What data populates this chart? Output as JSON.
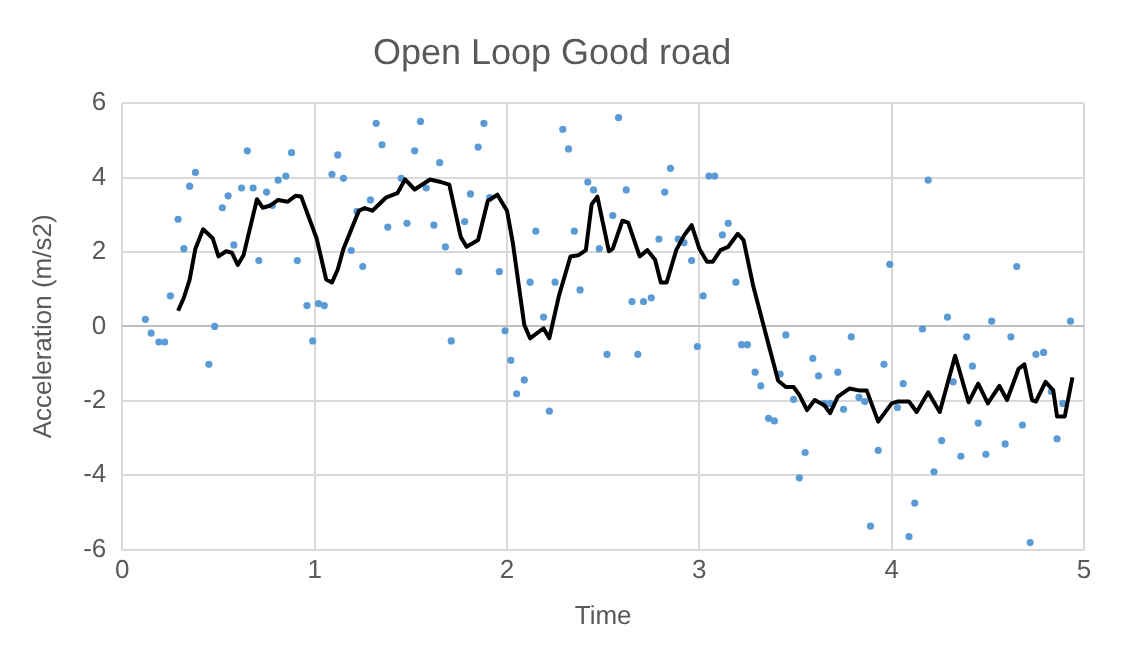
{
  "chart_data": {
    "type": "scatter",
    "title": "Open Loop Good road",
    "xlabel": "Time",
    "ylabel": "Acceleration (m/s2)",
    "xlim": [
      0,
      5
    ],
    "xticks": [
      0,
      1,
      2,
      3,
      4,
      5
    ],
    "ylim": [
      -6,
      6
    ],
    "yticks": [
      -6,
      -4,
      -2,
      0,
      2,
      4,
      6
    ],
    "grid": true,
    "legend": false,
    "marker": "circle",
    "series": [
      {
        "type": "scatter",
        "color": "#5b9bd5",
        "x": [
          0.12,
          0.15,
          0.19,
          0.22,
          0.25,
          0.29,
          0.32,
          0.35,
          0.38,
          0.45,
          0.48,
          0.52,
          0.55,
          0.58,
          0.62,
          0.65,
          0.68,
          0.71,
          0.75,
          0.78,
          0.81,
          0.85,
          0.88,
          0.91,
          0.96,
          0.99,
          1.02,
          1.05,
          1.09,
          1.12,
          1.15,
          1.19,
          1.22,
          1.25,
          1.29,
          1.32,
          1.35,
          1.38,
          1.45,
          1.48,
          1.52,
          1.55,
          1.58,
          1.62,
          1.65,
          1.68,
          1.71,
          1.75,
          1.78,
          1.81,
          1.85,
          1.88,
          1.91,
          1.96,
          1.99,
          2.02,
          2.05,
          2.09,
          2.12,
          2.15,
          2.19,
          2.22,
          2.25,
          2.29,
          2.32,
          2.35,
          2.38,
          2.42,
          2.45,
          2.48,
          2.52,
          2.55,
          2.58,
          2.62,
          2.65,
          2.68,
          2.71,
          2.75,
          2.79,
          2.82,
          2.85,
          2.89,
          2.92,
          2.96,
          2.99,
          3.02,
          3.05,
          3.08,
          3.12,
          3.15,
          3.19,
          3.22,
          3.25,
          3.29,
          3.32,
          3.36,
          3.39,
          3.42,
          3.45,
          3.49,
          3.52,
          3.55,
          3.59,
          3.62,
          3.65,
          3.68,
          3.72,
          3.75,
          3.79,
          3.83,
          3.86,
          3.89,
          3.93,
          3.96,
          3.99,
          4.03,
          4.06,
          4.09,
          4.12,
          4.16,
          4.19,
          4.22,
          4.26,
          4.29,
          4.32,
          4.36,
          4.39,
          4.42,
          4.45,
          4.49,
          4.52,
          4.59,
          4.62,
          4.65,
          4.68,
          4.72,
          4.75,
          4.79,
          4.83,
          4.86,
          4.89,
          4.93
        ],
        "values": [
          0.19,
          -0.18,
          -0.42,
          -0.42,
          0.82,
          2.88,
          2.09,
          3.77,
          4.14,
          -1.02,
          0,
          3.19,
          3.51,
          2.19,
          3.72,
          4.72,
          3.72,
          1.77,
          3.61,
          3.25,
          3.93,
          4.04,
          4.67,
          1.77,
          0.56,
          -0.39,
          0.61,
          0.56,
          4.09,
          4.61,
          3.98,
          2.04,
          3.09,
          1.61,
          3.4,
          5.46,
          4.88,
          2.67,
          3.98,
          2.77,
          4.72,
          5.51,
          3.72,
          2.72,
          4.4,
          2.14,
          -0.39,
          1.47,
          2.82,
          3.56,
          4.82,
          5.46,
          3.46,
          1.47,
          -0.12,
          -0.91,
          -1.81,
          -1.44,
          1.19,
          2.56,
          0.25,
          -2.28,
          1.19,
          5.3,
          4.77,
          2.56,
          0.98,
          3.88,
          3.67,
          2.09,
          -0.75,
          2.98,
          5.61,
          3.67,
          0.67,
          -0.75,
          0.67,
          0.77,
          2.35,
          3.61,
          4.25,
          2.35,
          2.25,
          1.77,
          -0.54,
          0.82,
          4.04,
          4.04,
          2.46,
          2.77,
          1.19,
          -0.49,
          -0.49,
          -1.23,
          -1.6,
          -2.47,
          -2.54,
          -1.28,
          -0.23,
          -1.96,
          -4.07,
          -3.39,
          -0.86,
          -1.33,
          -2.07,
          -2.07,
          -1.23,
          -2.23,
          -0.28,
          -1.91,
          -2.02,
          -5.37,
          -3.33,
          -1.02,
          1.67,
          -2.18,
          -1.54,
          -5.65,
          -4.75,
          -0.07,
          3.93,
          -3.91,
          -3.07,
          0.25,
          -1.49,
          -3.49,
          -0.28,
          -1.07,
          -2.6,
          -3.44,
          0.14,
          -3.16,
          -0.28,
          1.61,
          -2.65,
          -5.81,
          -0.75,
          -0.7,
          -1.75,
          -3.02,
          -2.07,
          0.14
        ]
      },
      {
        "type": "line",
        "color": "#000000",
        "marker": "none",
        "x": [
          0.29,
          0.32,
          0.35,
          0.38,
          0.42,
          0.47,
          0.5,
          0.54,
          0.57,
          0.6,
          0.63,
          0.7,
          0.73,
          0.77,
          0.81,
          0.86,
          0.9,
          0.93,
          1.01,
          1.06,
          1.09,
          1.12,
          1.15,
          1.23,
          1.26,
          1.3,
          1.37,
          1.43,
          1.47,
          1.52,
          1.6,
          1.65,
          1.7,
          1.76,
          1.79,
          1.85,
          1.9,
          1.95,
          2.0,
          2.03,
          2.09,
          2.12,
          2.19,
          2.22,
          2.27,
          2.33,
          2.37,
          2.41,
          2.44,
          2.47,
          2.5,
          2.53,
          2.55,
          2.6,
          2.63,
          2.69,
          2.73,
          2.77,
          2.8,
          2.83,
          2.88,
          2.92,
          2.96,
          3.0,
          3.04,
          3.07,
          3.11,
          3.15,
          3.2,
          3.23,
          3.28,
          3.36,
          3.41,
          3.45,
          3.49,
          3.52,
          3.56,
          3.6,
          3.65,
          3.68,
          3.72,
          3.78,
          3.83,
          3.87,
          3.93,
          4.0,
          4.03,
          4.09,
          4.13,
          4.19,
          4.25,
          4.33,
          4.4,
          4.45,
          4.5,
          4.56,
          4.6,
          4.66,
          4.69,
          4.73,
          4.75,
          4.8,
          4.84,
          4.86,
          4.9,
          4.94
        ],
        "values": [
          0.42,
          0.77,
          1.26,
          2.09,
          2.61,
          2.37,
          1.88,
          2.02,
          1.98,
          1.65,
          1.91,
          3.42,
          3.19,
          3.25,
          3.4,
          3.35,
          3.51,
          3.49,
          2.37,
          1.26,
          1.18,
          1.53,
          2.09,
          3.11,
          3.18,
          3.11,
          3.46,
          3.58,
          3.95,
          3.68,
          3.95,
          3.89,
          3.81,
          2.4,
          2.14,
          2.32,
          3.37,
          3.54,
          3.11,
          2.26,
          0.04,
          -0.32,
          -0.05,
          -0.32,
          0.82,
          1.88,
          1.91,
          2.05,
          3.28,
          3.49,
          2.75,
          2.02,
          2.09,
          2.84,
          2.79,
          1.88,
          2.05,
          1.79,
          1.18,
          1.18,
          2.05,
          2.44,
          2.72,
          2.09,
          1.74,
          1.74,
          2.05,
          2.14,
          2.49,
          2.32,
          1.09,
          -0.49,
          -1.46,
          -1.63,
          -1.63,
          -1.84,
          -2.25,
          -1.98,
          -2.12,
          -2.33,
          -1.89,
          -1.67,
          -1.72,
          -1.72,
          -2.56,
          -2.07,
          -2.02,
          -2.02,
          -2.3,
          -1.77,
          -2.3,
          -0.79,
          -2.04,
          -1.54,
          -2.07,
          -1.6,
          -1.98,
          -1.14,
          -1.02,
          -1.98,
          -2.02,
          -1.49,
          -1.72,
          -2.42,
          -2.42,
          -1.37
        ]
      }
    ]
  }
}
